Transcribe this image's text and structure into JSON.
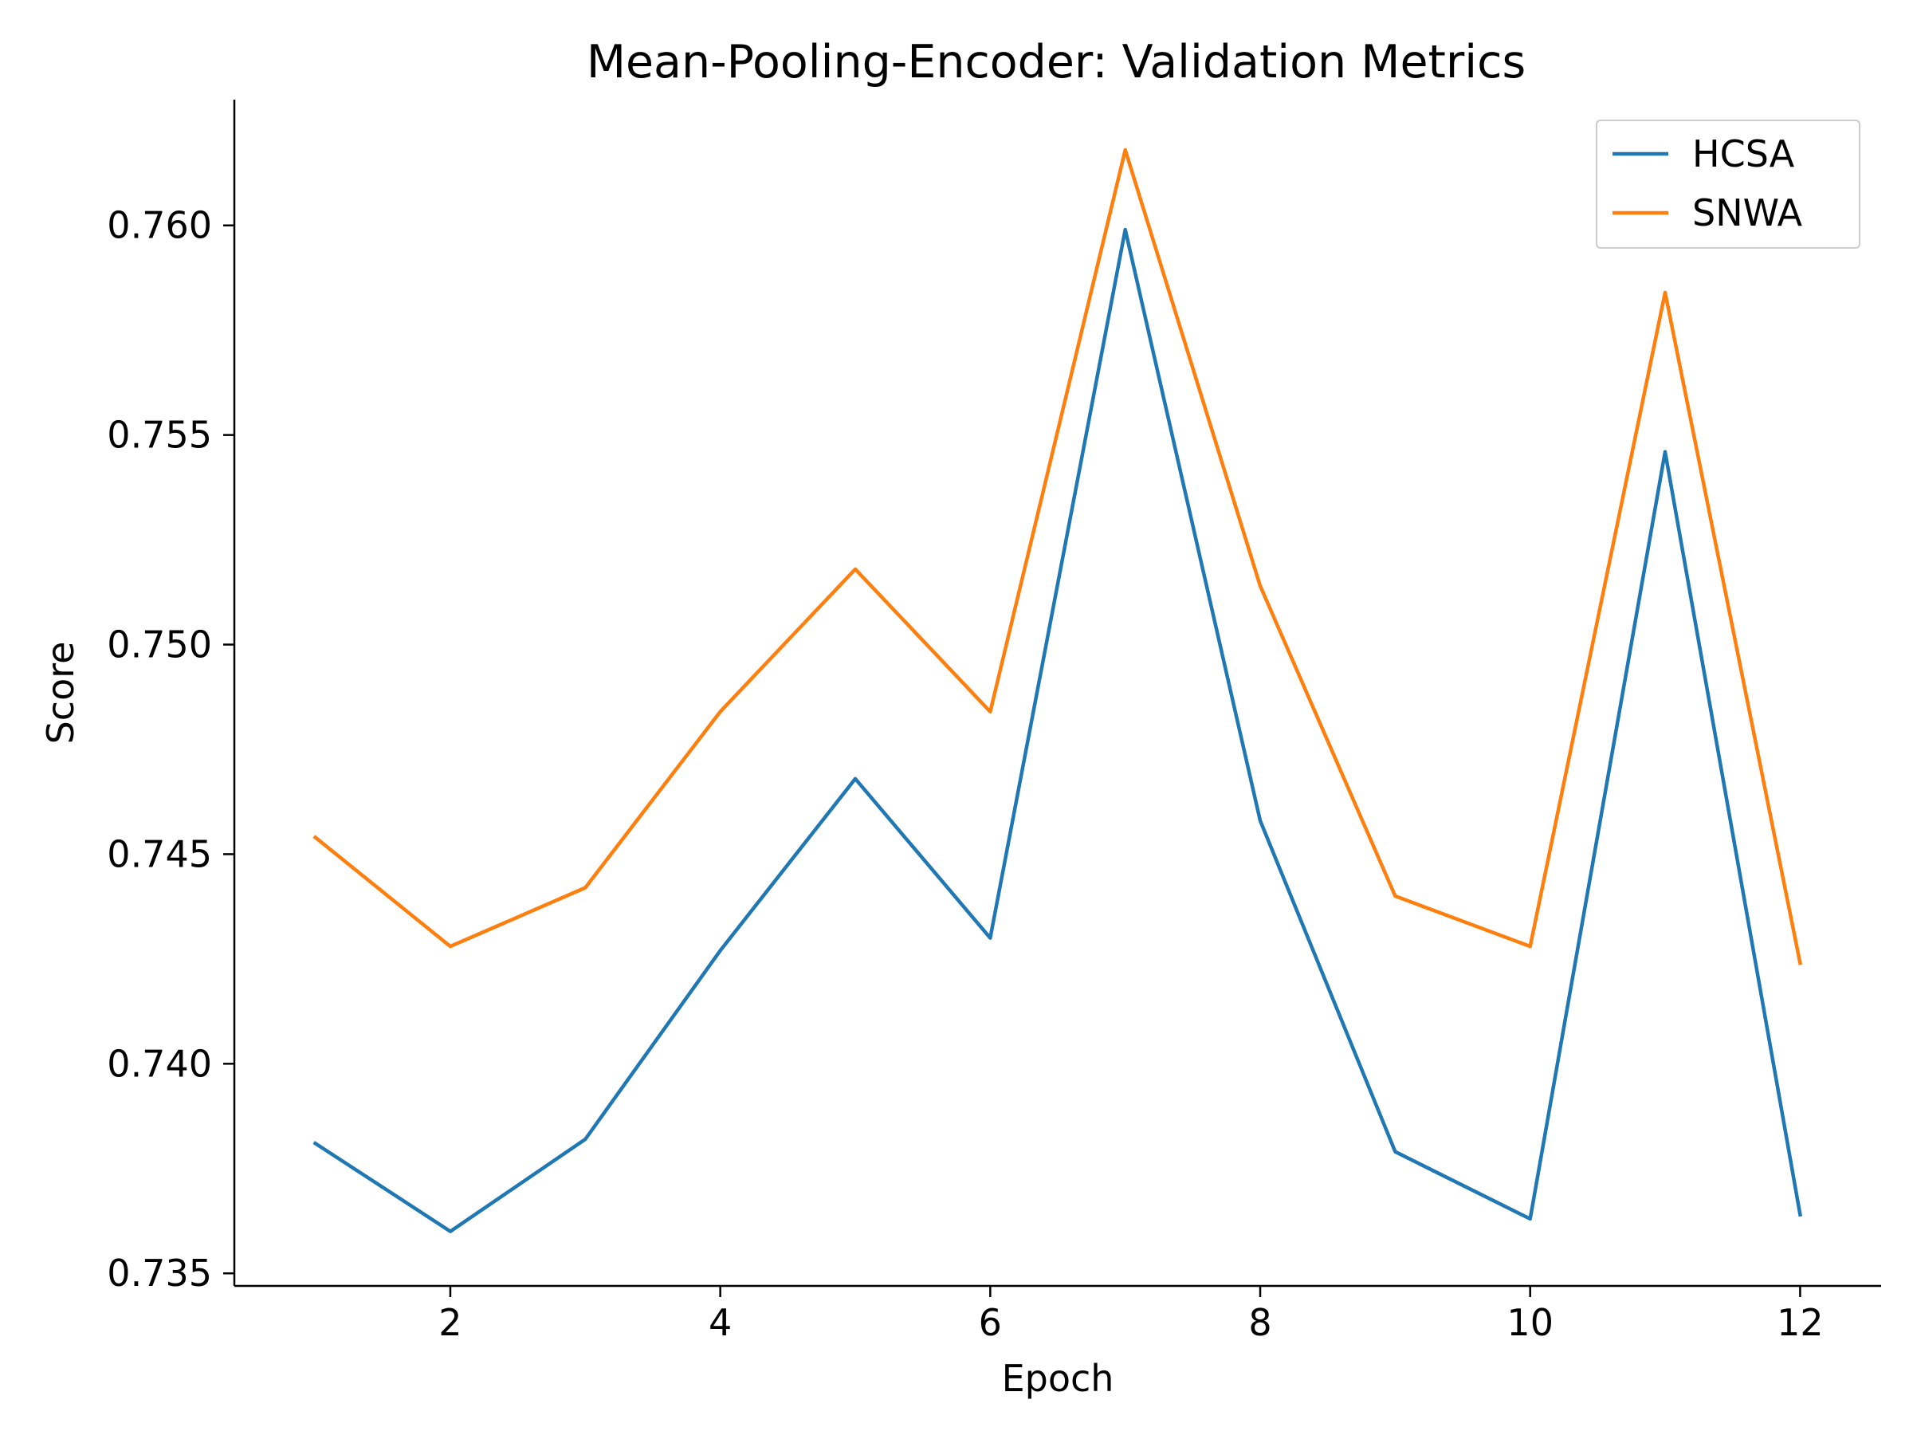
{
  "chart_data": {
    "type": "line",
    "title": "Mean-Pooling-Encoder: Validation Metrics",
    "xlabel": "Epoch",
    "ylabel": "Score",
    "x": [
      1,
      2,
      3,
      4,
      5,
      6,
      7,
      8,
      9,
      10,
      11,
      12
    ],
    "xlim": [
      0.4,
      12.6
    ],
    "ylim": [
      0.7347,
      0.763
    ],
    "xticks": [
      2,
      4,
      6,
      8,
      10,
      12
    ],
    "xtick_labels": [
      "2",
      "4",
      "6",
      "8",
      "10",
      "12"
    ],
    "yticks": [
      0.735,
      0.74,
      0.745,
      0.75,
      0.755,
      0.76
    ],
    "ytick_labels": [
      "0.735",
      "0.740",
      "0.745",
      "0.750",
      "0.755",
      "0.760"
    ],
    "grid": false,
    "legend_position": "top-right",
    "series": [
      {
        "name": "HCSA",
        "color": "#1f77b4",
        "values": [
          0.7381,
          0.736,
          0.7382,
          0.7427,
          0.7468,
          0.743,
          0.7599,
          0.7458,
          0.7379,
          0.7363,
          0.7546,
          0.7364
        ]
      },
      {
        "name": "SNWA",
        "color": "#ff7f0e",
        "values": [
          0.7454,
          0.7428,
          0.7442,
          0.7484,
          0.7518,
          0.7484,
          0.7618,
          0.7514,
          0.744,
          0.7428,
          0.7584,
          0.7424
        ]
      }
    ]
  }
}
